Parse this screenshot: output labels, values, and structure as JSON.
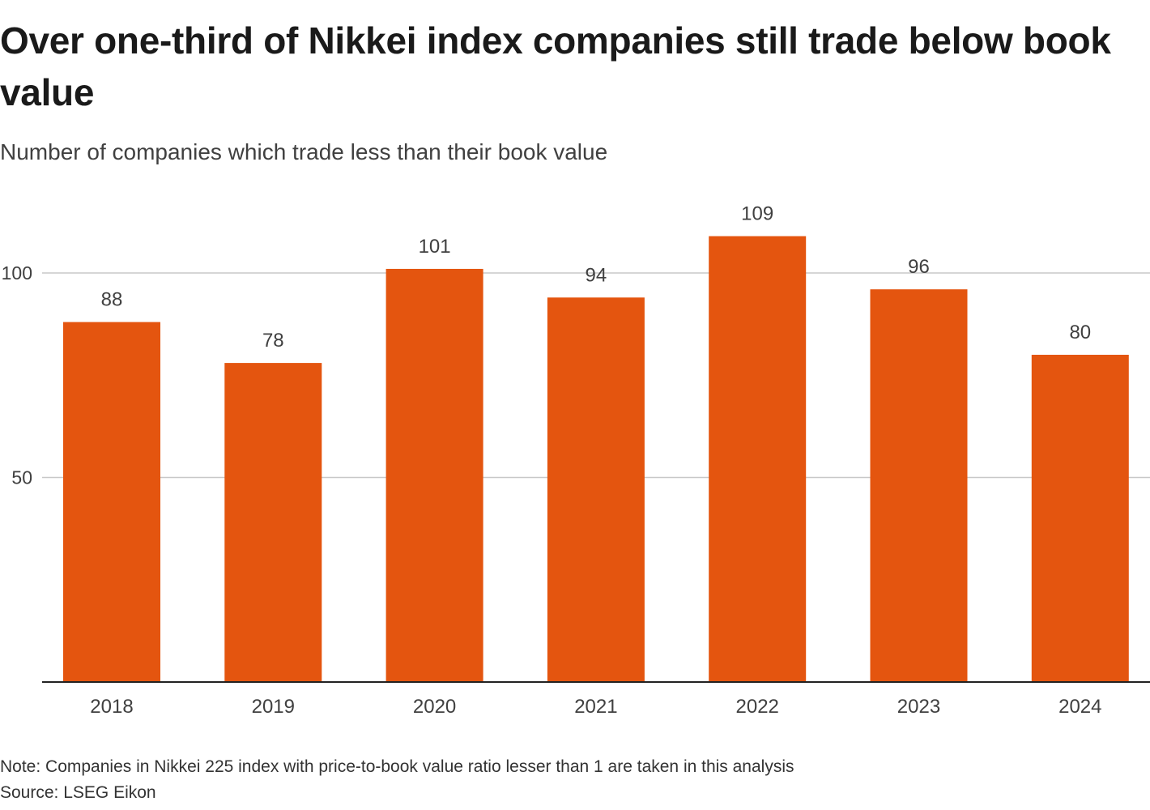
{
  "header": {
    "title": "Over one-third of Nikkei index companies still trade below book value",
    "subtitle": "Number of companies which trade less than their book value"
  },
  "footer": {
    "note": "Note: Companies in Nikkei 225 index with price-to-book value ratio lesser than 1 are taken in this analysis",
    "source": "Source: LSEG Eikon"
  },
  "colors": {
    "bar": "#e4550f",
    "grid": "#c8c8c8",
    "axis": "#222222",
    "text": "#404040"
  },
  "chart_data": {
    "type": "bar",
    "title": "Over one-third of Nikkei index companies still trade below book value",
    "subtitle": "Number of companies which trade less than their book value",
    "categories": [
      "2018",
      "2019",
      "2020",
      "2021",
      "2022",
      "2023",
      "2024"
    ],
    "values": [
      88,
      78,
      101,
      94,
      109,
      96,
      80
    ],
    "data_labels": [
      "88",
      "78",
      "101",
      "94",
      "109",
      "96",
      "80"
    ],
    "yticks": [
      50,
      100
    ],
    "ylim": [
      0,
      115
    ],
    "xlabel": "",
    "ylabel": "",
    "grid": true,
    "legend": "none"
  }
}
